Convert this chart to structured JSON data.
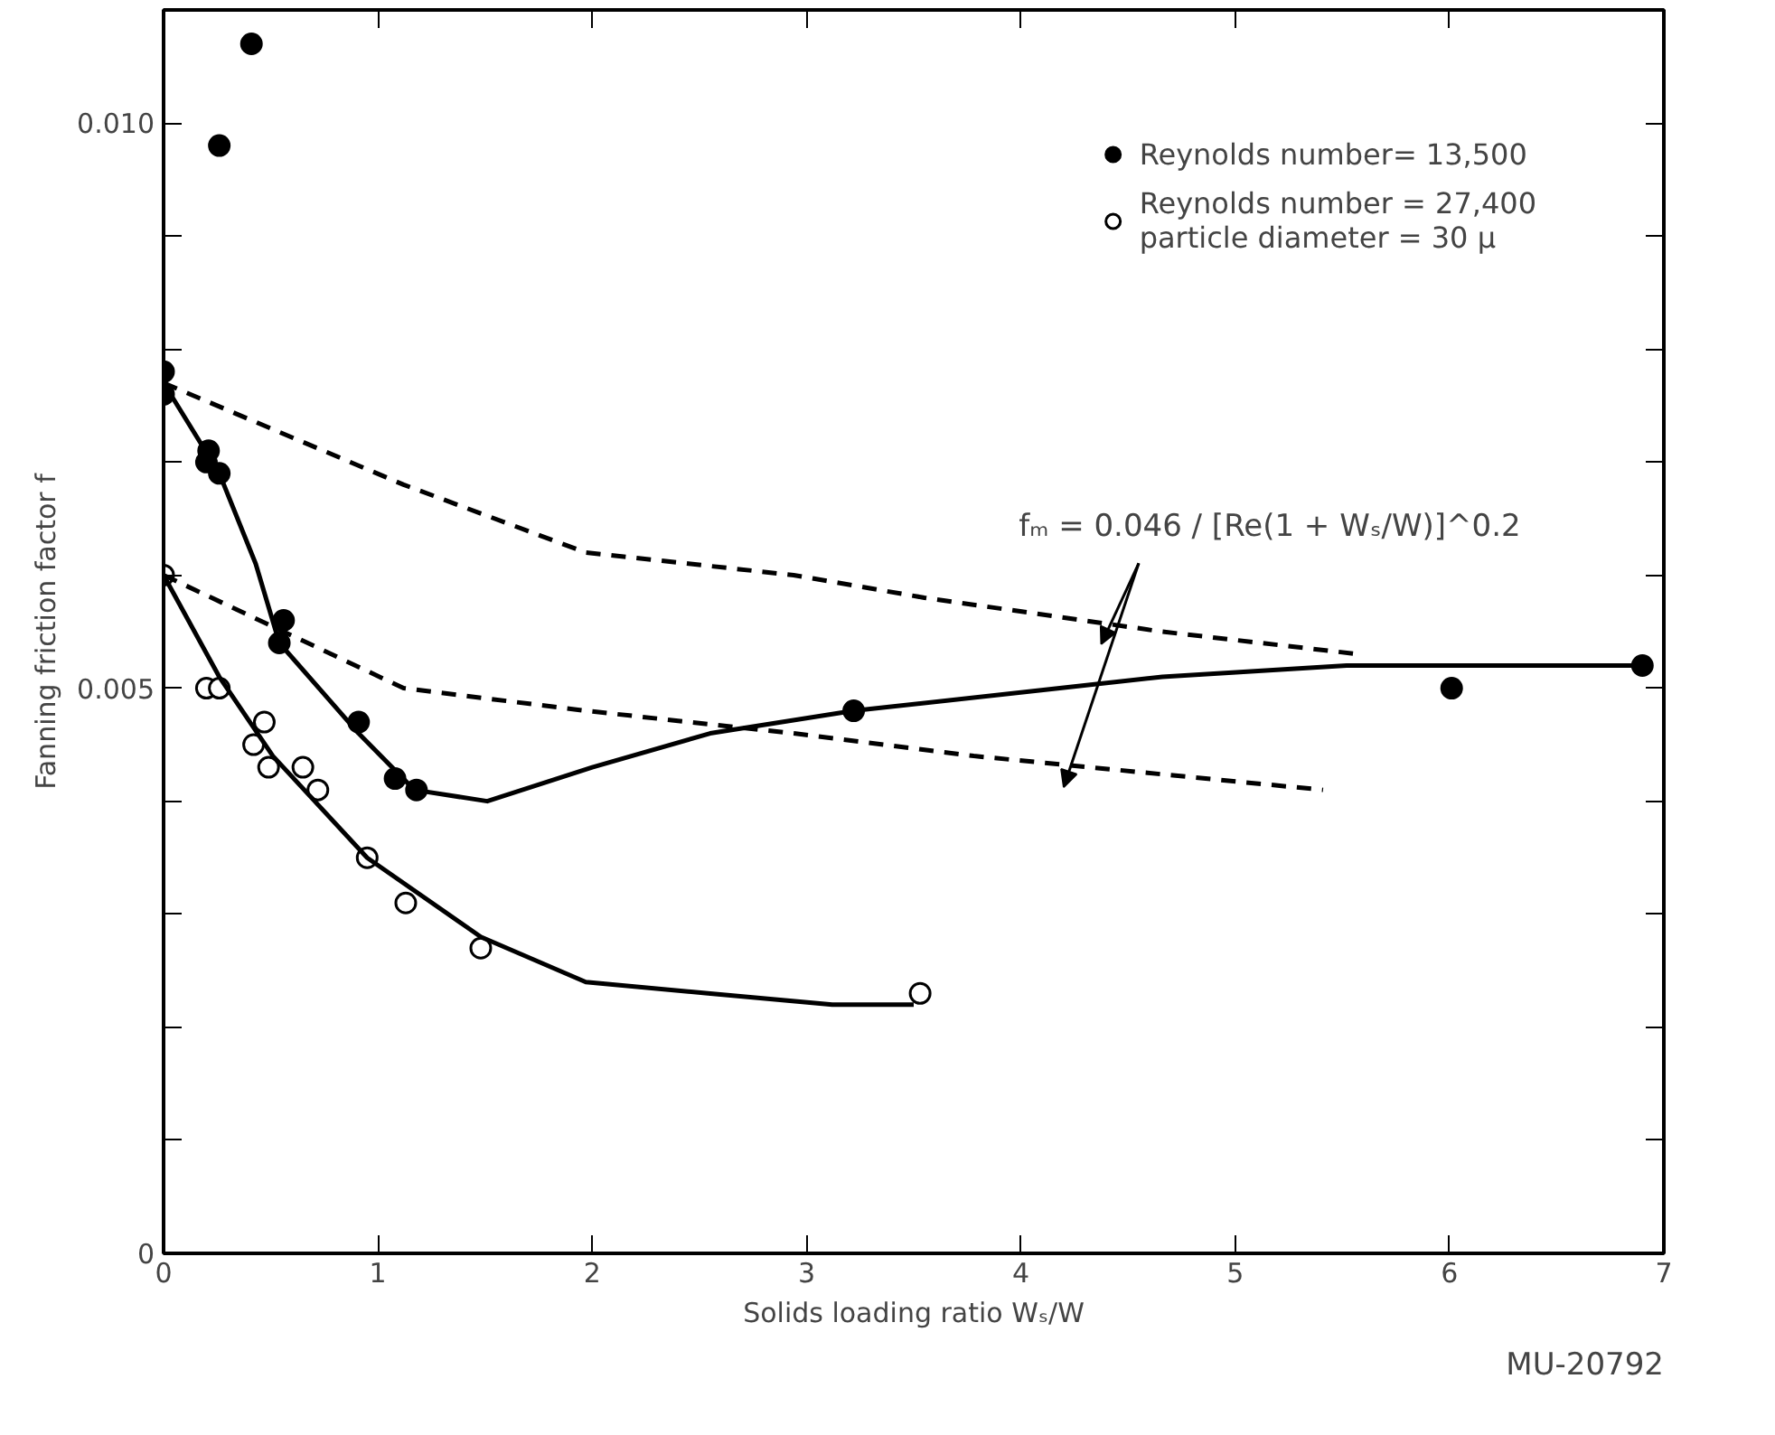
{
  "chart_data": {
    "type": "scatter",
    "xlabel": "Solids loading ratio Wₛ/W",
    "ylabel": "Fanning friction factor f",
    "xlim": [
      0,
      7
    ],
    "ylim": [
      0,
      0.011
    ],
    "xticks": [
      0,
      1,
      2,
      3,
      4,
      5,
      6,
      7
    ],
    "yticks": [
      {
        "value": 0,
        "label": "0"
      },
      {
        "value": 0.001,
        "label": null
      },
      {
        "value": 0.002,
        "label": null
      },
      {
        "value": 0.003,
        "label": null
      },
      {
        "value": 0.004,
        "label": null
      },
      {
        "value": 0.005,
        "label": "0.005"
      },
      {
        "value": 0.006,
        "label": null
      },
      {
        "value": 0.007,
        "label": null
      },
      {
        "value": 0.008,
        "label": null
      },
      {
        "value": 0.009,
        "label": null
      },
      {
        "value": 0.01,
        "label": "0.010"
      }
    ],
    "grid": false,
    "legend": "top right",
    "series": [
      {
        "name": "Reynolds number= 13,500",
        "marker": "circle",
        "color": "#000000",
        "x": [
          0.41,
          0.26,
          0,
          0,
          0.21,
          0.2,
          0.26,
          0.56,
          0.54,
          0.91,
          1.08,
          1.18,
          3.22,
          6.01,
          6.9
        ],
        "values": [
          0.0107,
          0.0098,
          0.0078,
          0.0076,
          0.0071,
          0.007,
          0.0069,
          0.0056,
          0.0054,
          0.0047,
          0.0042,
          0.0041,
          0.0048,
          0.005,
          0.0052
        ]
      },
      {
        "name": "Reynolds number = 27,400\nparticle diameter = 30 μ",
        "marker": "circle",
        "color": "#ffffff",
        "x": [
          0,
          0.2,
          0.26,
          0.47,
          0.42,
          0.49,
          0.65,
          0.72,
          0.95,
          1.13,
          1.48,
          3.53
        ],
        "values": [
          0.006,
          0.005,
          0.005,
          0.0047,
          0.0045,
          0.0043,
          0.0043,
          0.0041,
          0.0035,
          0.0031,
          0.0027,
          0.0023
        ]
      },
      {
        "type": "line",
        "line_style": "solid",
        "color": "#000000",
        "x": [
          0,
          0.26,
          0.43,
          0.54,
          0.91,
          1.17,
          1.51,
          2.0,
          2.55,
          3.22,
          4.66,
          5.52,
          6.9
        ],
        "values": [
          0.0077,
          0.0069,
          0.0061,
          0.0054,
          0.0046,
          0.0041,
          0.004,
          0.0043,
          0.0046,
          0.0048,
          0.0051,
          0.0052,
          0.0052
        ]
      },
      {
        "type": "line",
        "line_style": "solid",
        "color": "#000000",
        "x": [
          0,
          0.26,
          0.51,
          0.95,
          1.48,
          1.97,
          2.54,
          3.12,
          3.5
        ],
        "values": [
          0.006,
          0.0051,
          0.0044,
          0.0035,
          0.0028,
          0.0024,
          0.0023,
          0.0022,
          0.0022
        ]
      },
      {
        "type": "line",
        "line_style": "dashed",
        "color": "#000000",
        "x": [
          0,
          1.12,
          1.97,
          2.94,
          3.55,
          4.66,
          5.58
        ],
        "values": [
          0.0077,
          0.0068,
          0.0062,
          0.006,
          0.0058,
          0.0055,
          0.0053
        ]
      },
      {
        "type": "line",
        "line_style": "dashed",
        "color": "#000000",
        "x": [
          0,
          1.12,
          1.97,
          2.94,
          3.78,
          5.41
        ],
        "values": [
          0.006,
          0.005,
          0.0048,
          0.0046,
          0.0044,
          0.0041
        ]
      }
    ],
    "annotations": [
      "fₘ = 0.046 / [Re(1 + Wₛ/W)]^0.2",
      "MU-20792"
    ]
  }
}
